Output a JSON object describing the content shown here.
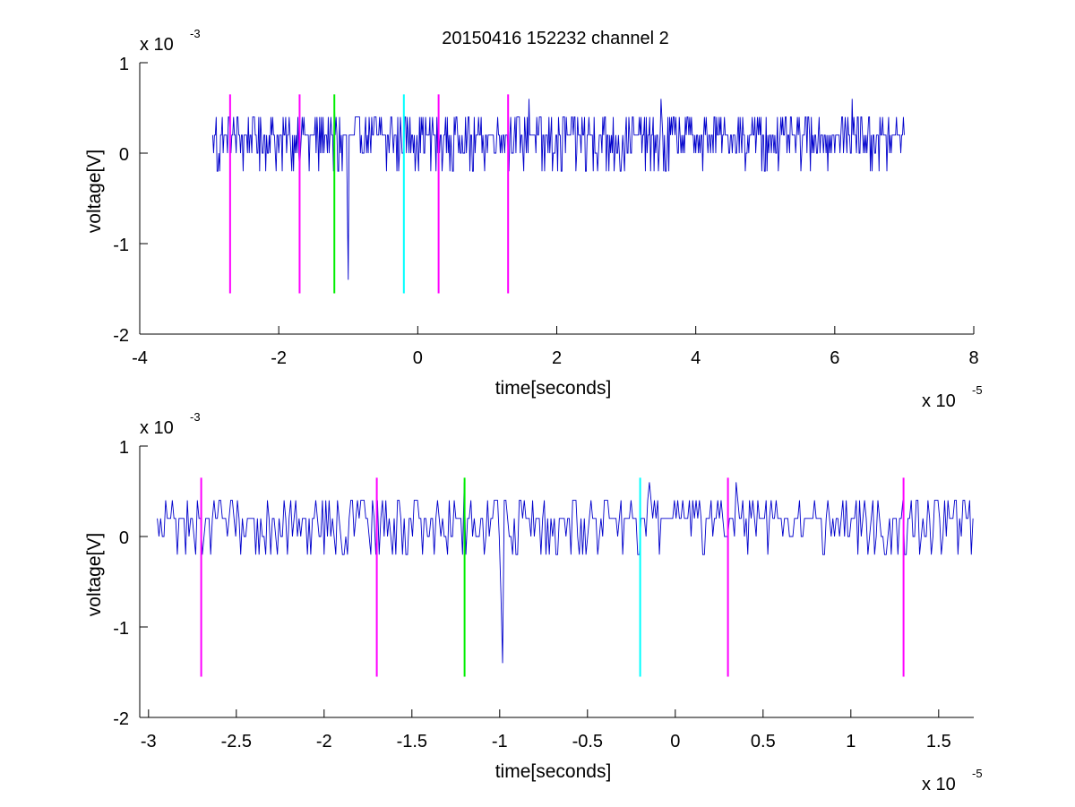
{
  "title": "20150416 152232 channel 2",
  "colors": {
    "signal": "#0000cc",
    "magenta": "#ff00ff",
    "green": "#00ee00",
    "cyan": "#00ffff",
    "axes": "#000000",
    "background": "#ffffff"
  },
  "chart_data": [
    {
      "type": "line",
      "title": "20150416 152232 channel 2",
      "xlabel": "time[seconds]",
      "ylabel": "voltage[V]",
      "x_exponent_label": "x 10",
      "x_exponent": "-5",
      "y_exponent_label": "x 10",
      "y_exponent": "-3",
      "xlim": [
        -4,
        8
      ],
      "ylim": [
        -2,
        1
      ],
      "x_ticks": [
        -4,
        -2,
        0,
        2,
        4,
        6,
        8
      ],
      "x_tick_labels": [
        "-4",
        "-2",
        "0",
        "2",
        "4",
        "6",
        "8"
      ],
      "y_ticks": [
        -2,
        -1,
        0,
        1
      ],
      "y_tick_labels": [
        "-2",
        "-1",
        "0",
        "1"
      ],
      "grid": false,
      "signal": {
        "x_start": -2.95,
        "x_end": 7.0,
        "baseline": 0.15,
        "levels": [
          0,
          0.2,
          0.4
        ],
        "spikes": [
          {
            "x": -1.0,
            "y": -1.4
          },
          {
            "x": -1.2,
            "y": 0.6
          },
          {
            "x": 1.6,
            "y": 0.6
          },
          {
            "x": 3.5,
            "y": 0.6
          },
          {
            "x": 6.25,
            "y": 0.6
          }
        ]
      },
      "markers": [
        {
          "x": -2.7,
          "color": "magenta",
          "y_top": 0.65,
          "y_bottom": -1.55
        },
        {
          "x": -1.7,
          "color": "magenta",
          "y_top": 0.65,
          "y_bottom": -1.55
        },
        {
          "x": -1.2,
          "color": "green",
          "y_top": 0.65,
          "y_bottom": -1.55
        },
        {
          "x": -0.2,
          "color": "cyan",
          "y_top": 0.65,
          "y_bottom": -1.55
        },
        {
          "x": 0.3,
          "color": "magenta",
          "y_top": 0.65,
          "y_bottom": -1.55
        },
        {
          "x": 1.3,
          "color": "magenta",
          "y_top": 0.65,
          "y_bottom": -1.55
        }
      ]
    },
    {
      "type": "line",
      "title": "",
      "xlabel": "time[seconds]",
      "ylabel": "voltage[V]",
      "x_exponent_label": "x 10",
      "x_exponent": "-5",
      "y_exponent_label": "x 10",
      "y_exponent": "-3",
      "xlim": [
        -3.05,
        1.7
      ],
      "ylim": [
        -2,
        1
      ],
      "x_ticks": [
        -3,
        -2.5,
        -2,
        -1.5,
        -1,
        -0.5,
        0,
        0.5,
        1,
        1.5
      ],
      "x_tick_labels": [
        "-3",
        "-2.5",
        "-2",
        "-1.5",
        "-1",
        "-0.5",
        "0",
        "0.5",
        "1",
        "1.5"
      ],
      "y_ticks": [
        -2,
        -1,
        0,
        1
      ],
      "y_tick_labels": [
        "-2",
        "-1",
        "0",
        "1"
      ],
      "grid": false,
      "signal": {
        "x_start": -2.95,
        "x_end": 1.7,
        "baseline": 0.15,
        "levels": [
          0,
          0.2,
          0.4
        ],
        "spikes": [
          {
            "x": -0.98,
            "y": -1.4
          },
          {
            "x": -1.2,
            "y": 0.6
          },
          {
            "x": -0.15,
            "y": 0.6
          },
          {
            "x": 0.35,
            "y": 0.6
          }
        ]
      },
      "markers": [
        {
          "x": -2.7,
          "color": "magenta",
          "y_top": 0.65,
          "y_bottom": -1.55
        },
        {
          "x": -1.7,
          "color": "magenta",
          "y_top": 0.65,
          "y_bottom": -1.55
        },
        {
          "x": -1.2,
          "color": "green",
          "y_top": 0.65,
          "y_bottom": -1.55
        },
        {
          "x": -0.2,
          "color": "cyan",
          "y_top": 0.65,
          "y_bottom": -1.55
        },
        {
          "x": 0.3,
          "color": "magenta",
          "y_top": 0.65,
          "y_bottom": -1.55
        },
        {
          "x": 1.3,
          "color": "magenta",
          "y_top": 0.65,
          "y_bottom": -1.55
        }
      ]
    }
  ]
}
